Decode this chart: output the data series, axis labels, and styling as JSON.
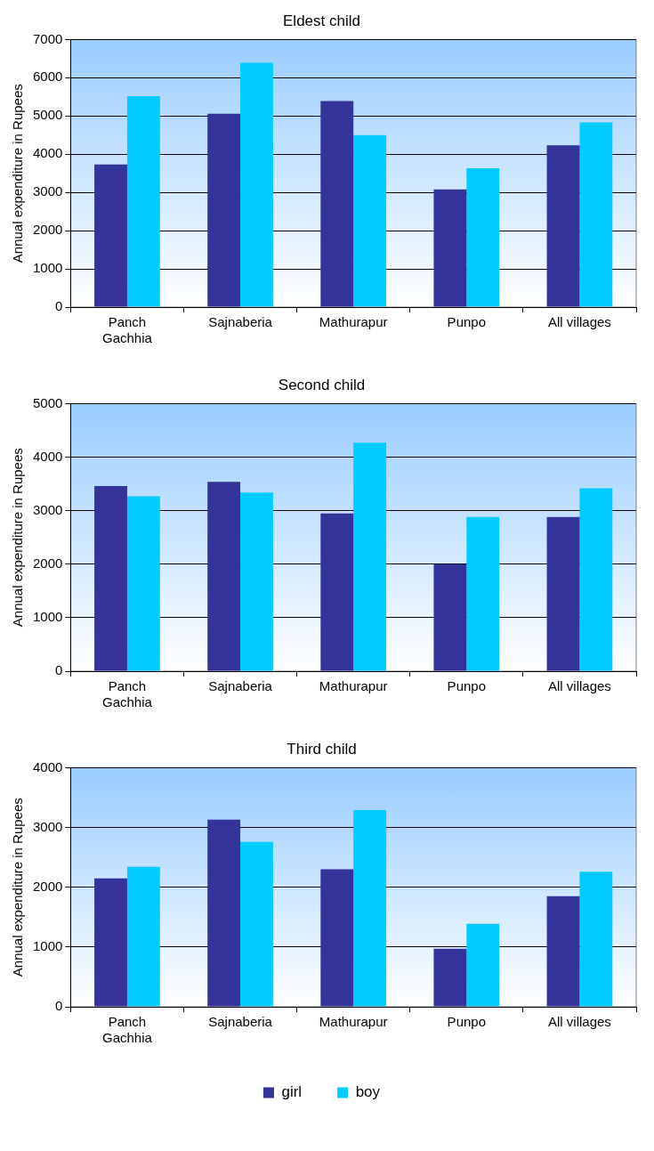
{
  "chart_data": [
    {
      "type": "bar",
      "title": "Eldest child",
      "ylabel": "Annual expenditure in Rupees",
      "categories": [
        "Panch Gachhia",
        "Sajnaberia",
        "Mathurapur",
        "Punpo",
        "All villages"
      ],
      "series": [
        {
          "color": "#333399",
          "values": [
            3730,
            5060,
            5390,
            3080,
            4230
          ]
        },
        {
          "color": "#00ccff",
          "values": [
            5520,
            6390,
            4500,
            3630,
            4830
          ]
        }
      ],
      "ylim": [
        0,
        7000
      ],
      "yticks": [
        0,
        1000,
        2000,
        3000,
        4000,
        5000,
        6000,
        7000
      ],
      "grid": "y",
      "legend": false
    },
    {
      "type": "bar",
      "title": "Second child",
      "ylabel": "Annual expenditure in Rupees",
      "categories": [
        "Panch Gachhia",
        "Sajnaberia",
        "Mathurapur",
        "Punpo",
        "All villages"
      ],
      "series": [
        {
          "color": "#333399",
          "values": [
            3460,
            3540,
            2950,
            2000,
            2880
          ]
        },
        {
          "color": "#00ccff",
          "values": [
            3270,
            3340,
            4270,
            2880,
            3420
          ]
        }
      ],
      "ylim": [
        0,
        5000
      ],
      "yticks": [
        0,
        1000,
        2000,
        3000,
        4000,
        5000
      ],
      "grid": "y",
      "legend": false
    },
    {
      "type": "bar",
      "title": "Third child",
      "ylabel": "Annual expenditure in Rupees",
      "categories": [
        "Panch Gachhia",
        "Sajnaberia",
        "Mathurapur",
        "Punpo",
        "All villages"
      ],
      "series": [
        {
          "name": "girl",
          "color": "#333399",
          "values": [
            2150,
            3130,
            2300,
            970,
            1850
          ]
        },
        {
          "name": "boy",
          "color": "#00ccff",
          "values": [
            2340,
            2760,
            3290,
            1390,
            2260
          ]
        }
      ],
      "ylim": [
        0,
        4000
      ],
      "yticks": [
        0,
        1000,
        2000,
        3000,
        4000
      ],
      "grid": "y",
      "legend": "bottom"
    }
  ]
}
